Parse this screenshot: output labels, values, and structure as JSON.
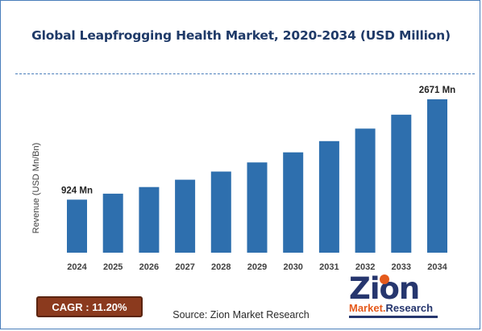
{
  "chart_data": {
    "type": "bar",
    "title": "Global Leapfrogging Health Market, 2020-2034 (USD Million)",
    "ylabel": "Revenue (USD Mn/Bn)",
    "xlabel": "",
    "categories": [
      "2024",
      "2025",
      "2026",
      "2027",
      "2028",
      "2029",
      "2030",
      "2031",
      "2032",
      "2033",
      "2034"
    ],
    "values": [
      924,
      1028,
      1143,
      1271,
      1413,
      1571,
      1747,
      1943,
      2161,
      2403,
      2671
    ],
    "ylim": [
      0,
      2671
    ],
    "grid": false,
    "legend": "none",
    "annotations": [
      {
        "index": 0,
        "text": "924 Mn"
      },
      {
        "index": 10,
        "text": "2671 Mn"
      }
    ],
    "bar_color": "#2e6fae"
  },
  "cagr": {
    "text": "CAGR : 11.20%",
    "color": "#8b3a1e"
  },
  "source": {
    "text": "Source: Zion Market Research"
  },
  "logo": {
    "word": "Zion",
    "sub_1": "Market.",
    "sub_2": "Research",
    "icon": "zion-logo-icon",
    "colors": {
      "navy": "#26366e",
      "orange": "#e55a1c"
    }
  }
}
